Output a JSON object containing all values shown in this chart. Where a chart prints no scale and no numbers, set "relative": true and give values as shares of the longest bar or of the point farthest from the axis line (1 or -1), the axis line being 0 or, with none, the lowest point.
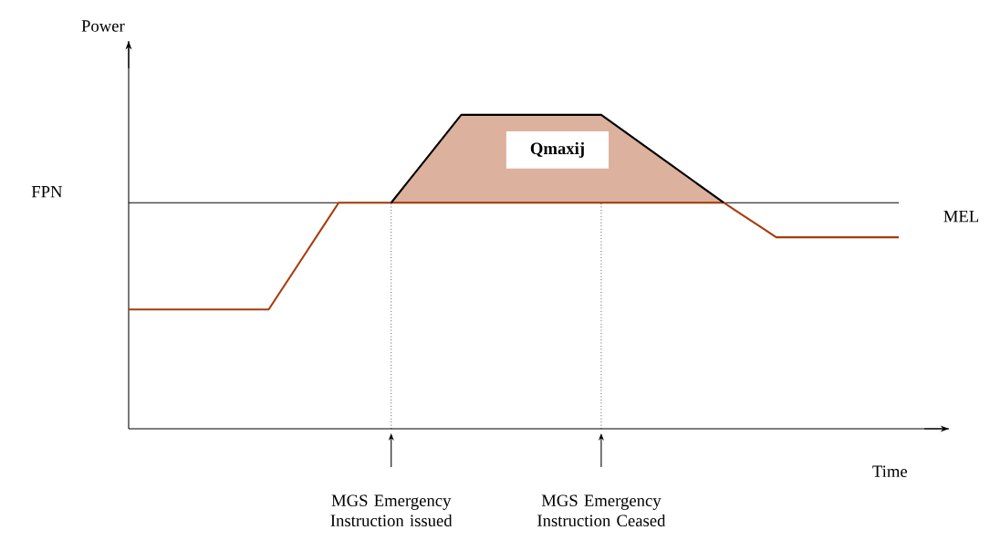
{
  "chart_data": {
    "type": "line",
    "relative": true,
    "xlabel": "Time",
    "ylabel": "Power",
    "marker": "none",
    "line_style": "solid",
    "categories": [
      null,
      null,
      null,
      null,
      null,
      null,
      null,
      null,
      null,
      null,
      null,
      null,
      null,
      null,
      null,
      null,
      null,
      null,
      null,
      null,
      null,
      null,
      null,
      null,
      null,
      null,
      null,
      null,
      null,
      null,
      null,
      null,
      null,
      null,
      null,
      null,
      null,
      null,
      null,
      null,
      null,
      null,
      null,
      null,
      null
    ],
    "series": [
      {
        "color": "#a83c0c",
        "values": [
          0.38,
          0.38,
          0.38,
          0.38,
          0.38,
          0.38,
          0.38,
          0.38,
          0.38,
          0.465,
          0.55,
          0.635,
          0.72,
          0.72,
          0.72,
          0.72,
          0.72,
          0.72,
          0.72,
          0.72,
          0.72,
          0.72,
          0.72,
          0.72,
          0.72,
          0.72,
          0.72,
          0.72,
          0.72,
          0.72,
          0.72,
          0.72,
          0.72,
          0.72,
          0.72,
          0.683,
          0.647,
          0.61,
          0.61,
          0.61,
          0.61,
          0.61,
          0.61,
          0.61,
          0.61
        ]
      },
      {
        "color": "#000000",
        "values": [
          null,
          null,
          null,
          null,
          null,
          null,
          null,
          null,
          null,
          null,
          null,
          null,
          null,
          null,
          null,
          0.72,
          0.79,
          0.86,
          0.93,
          1,
          1,
          1,
          1,
          1,
          1,
          1,
          1,
          1,
          0.96,
          0.92,
          0.88,
          0.84,
          0.8,
          0.76,
          0.72,
          null,
          null,
          null,
          null,
          null,
          null,
          null,
          null,
          null,
          null
        ],
        "lower": [
          null,
          null,
          null,
          null,
          null,
          null,
          null,
          null,
          null,
          null,
          null,
          null,
          null,
          null,
          null,
          0.72,
          0.72,
          0.72,
          0.72,
          0.72,
          0.72,
          0.72,
          0.72,
          0.72,
          0.72,
          0.72,
          0.72,
          0.72,
          0.72,
          0.72,
          0.72,
          0.72,
          0.72,
          0.72,
          0.72,
          null,
          null,
          null,
          null,
          null,
          null,
          null,
          null,
          null,
          null
        ],
        "upper": [
          null,
          null,
          null,
          null,
          null,
          null,
          null,
          null,
          null,
          null,
          null,
          null,
          null,
          null,
          null,
          0.72,
          0.79,
          0.86,
          0.93,
          1,
          1,
          1,
          1,
          1,
          1,
          1,
          1,
          1,
          0.96,
          0.92,
          0.88,
          0.84,
          0.8,
          0.76,
          0.72,
          null,
          null,
          null,
          null,
          null,
          null,
          null,
          null,
          null,
          null
        ]
      }
    ],
    "ref_lines": [
      {
        "axis": "y",
        "value": 0.72,
        "label": "MEL",
        "color": "#000000"
      }
    ],
    "annotations": [
      "FPN",
      "Qmaxij",
      "MGS Emergency Instruction issued",
      "MGS Emergency Instruction Ceased"
    ]
  }
}
